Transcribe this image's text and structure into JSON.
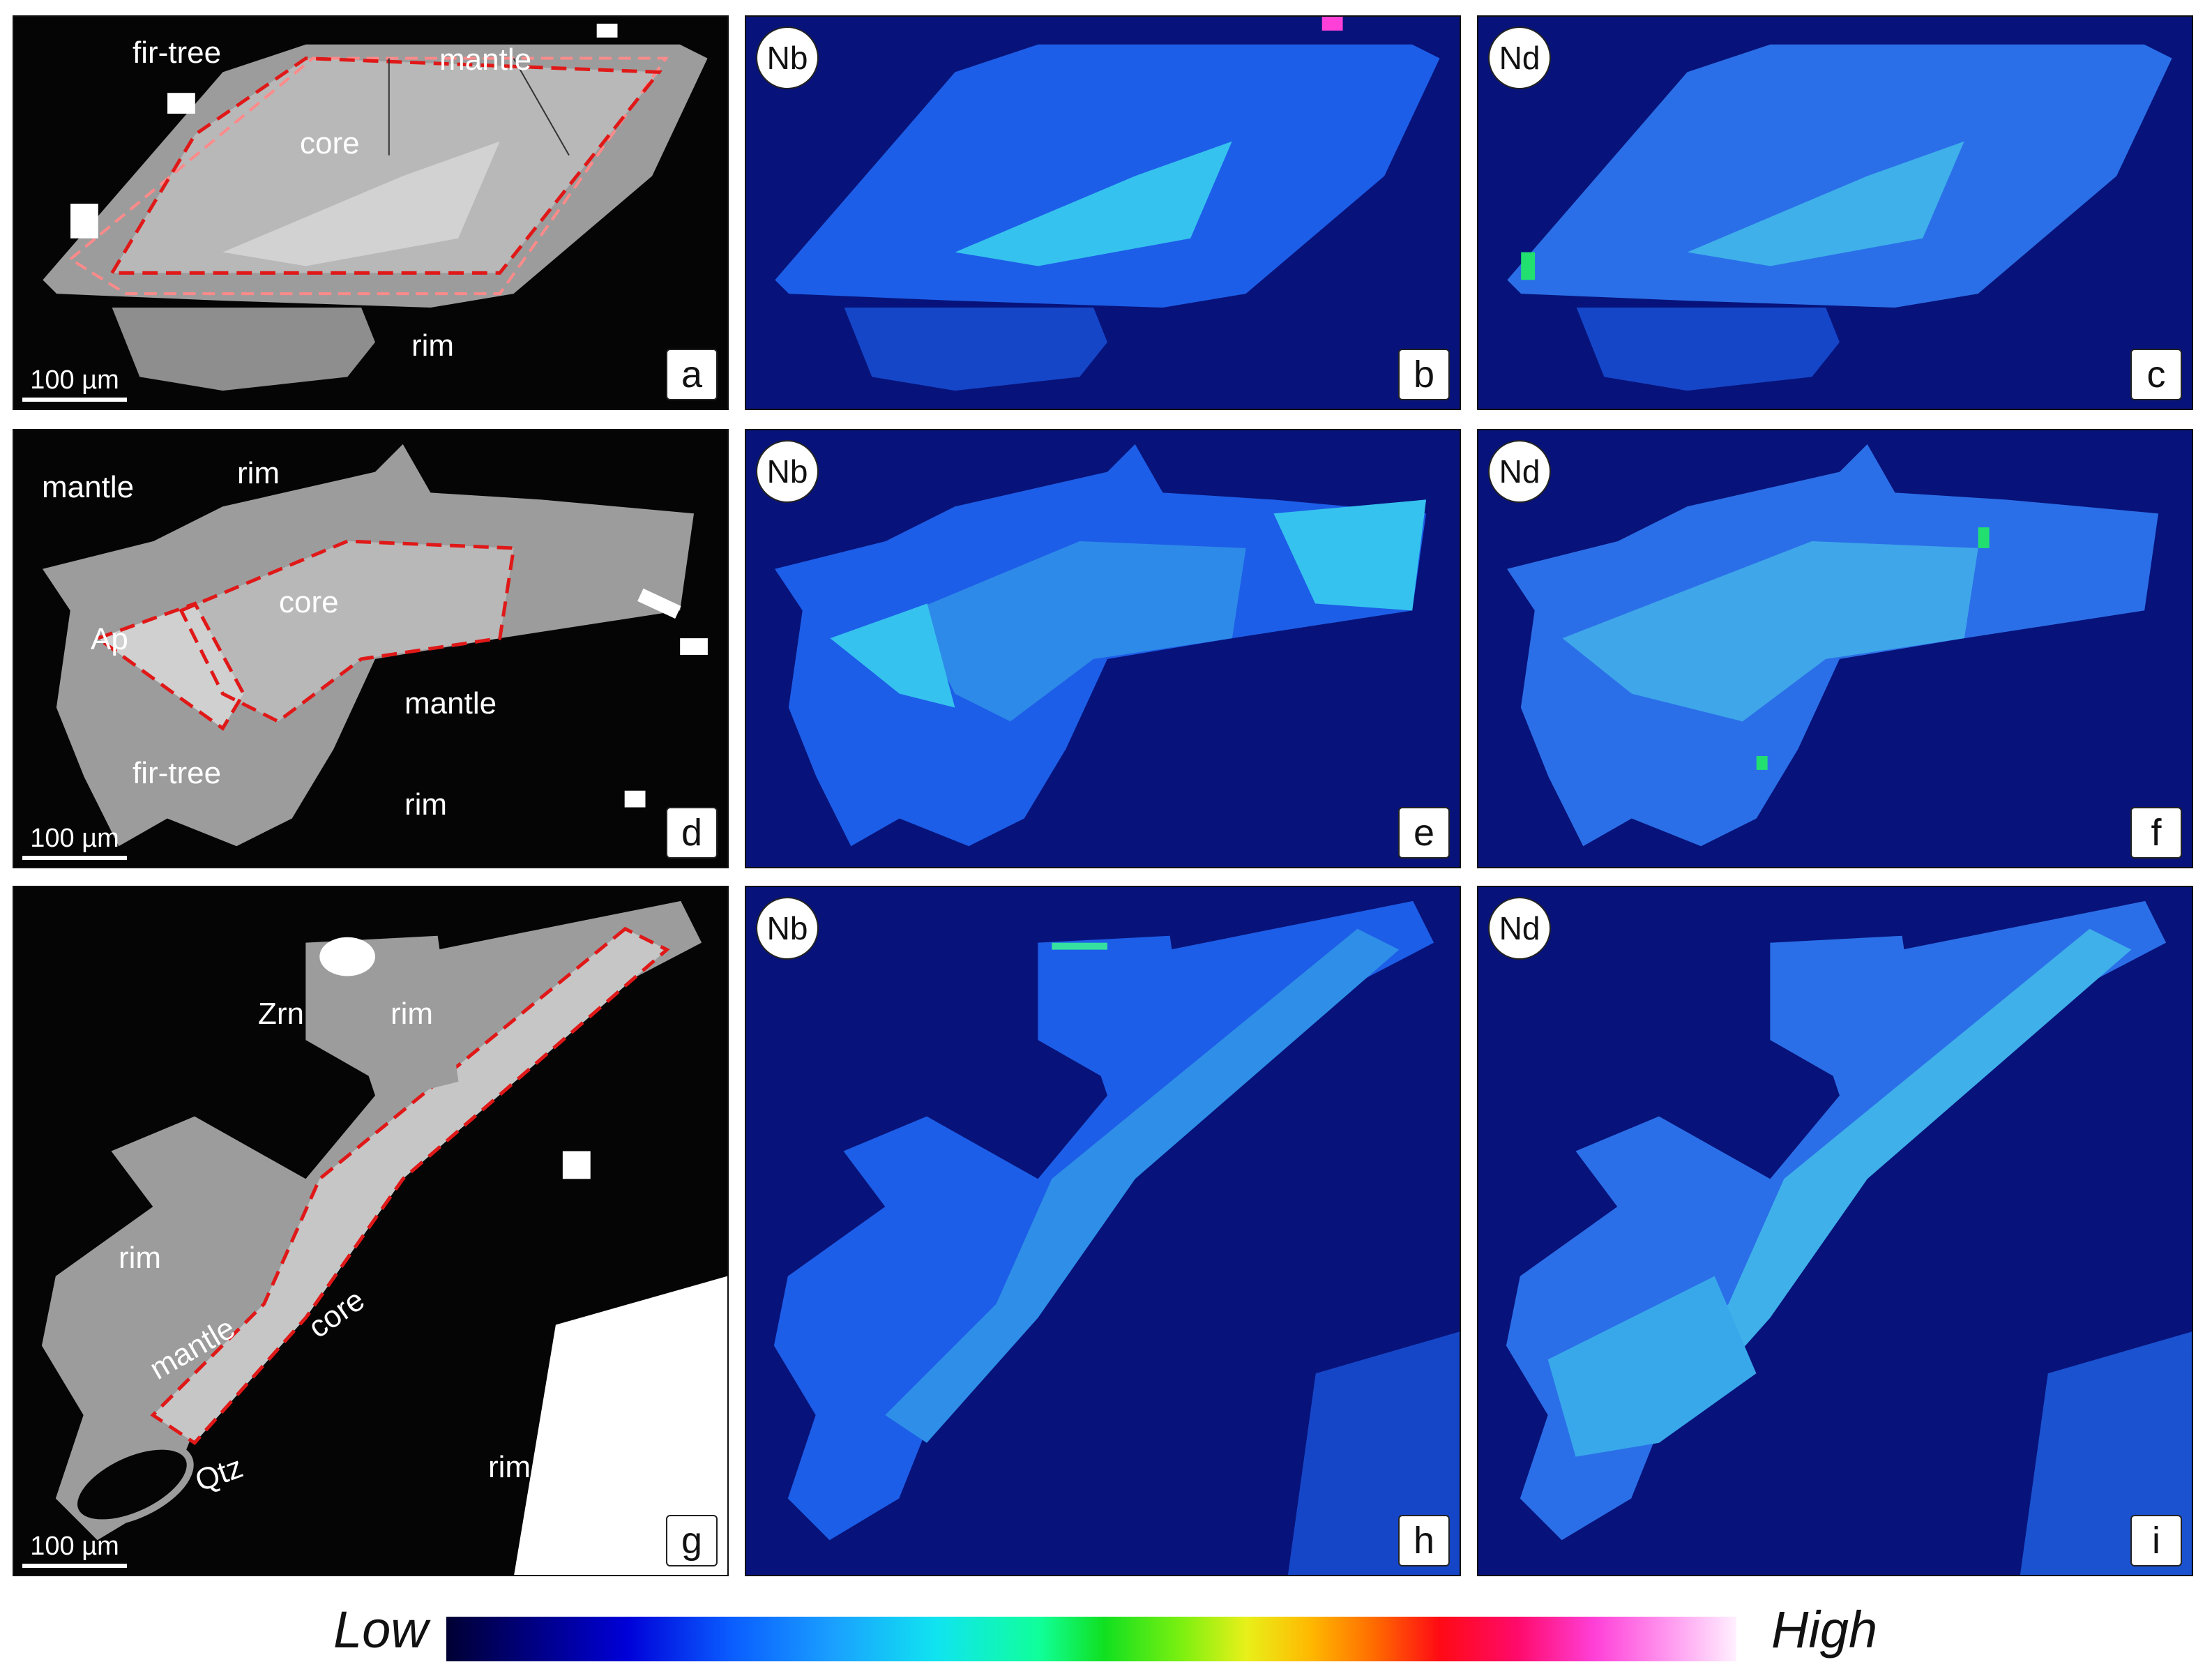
{
  "panels": [
    {
      "id": "a",
      "kind": "bse",
      "scale": "100 µm",
      "labels": {
        "fir_tree": "fir-tree",
        "mantle": "mantle",
        "core": "core",
        "rim": "rim"
      }
    },
    {
      "id": "b",
      "kind": "map",
      "element": "Nb"
    },
    {
      "id": "c",
      "kind": "map",
      "element": "Nd"
    },
    {
      "id": "d",
      "kind": "bse",
      "scale": "100 µm",
      "labels": {
        "mantle_top": "mantle",
        "rim_top": "rim",
        "core": "core",
        "ap": "Ap",
        "mantle_right": "mantle",
        "fir_tree": "fir-tree",
        "rim_bottom": "rim"
      }
    },
    {
      "id": "e",
      "kind": "map",
      "element": "Nb"
    },
    {
      "id": "f",
      "kind": "map",
      "element": "Nd"
    },
    {
      "id": "g",
      "kind": "bse",
      "scale": "100 µm",
      "labels": {
        "zrn": "Zrn",
        "rim_top": "rim",
        "rim_left": "rim",
        "mantle": "mantle",
        "core": "core",
        "qtz": "Qtz",
        "rim_right": "rim"
      }
    },
    {
      "id": "h",
      "kind": "map",
      "element": "Nb"
    },
    {
      "id": "i",
      "kind": "map",
      "element": "Nd"
    }
  ],
  "legend": {
    "low": "Low",
    "high": "High",
    "colormap": [
      "#000033",
      "#00007a",
      "#0000d8",
      "#0a5cff",
      "#1aa0ff",
      "#10e4f0",
      "#10ff9a",
      "#10e020",
      "#7cf010",
      "#e8f01a",
      "#ffb800",
      "#ff6a00",
      "#ff0a14",
      "#ff0a6a",
      "#ff40d8",
      "#ff9cf0",
      "#fff0ff"
    ]
  },
  "colors": {
    "zone_outline": "#e01818",
    "bse_mineral": "#9a9a9a",
    "bse_core": "#b8b8b8",
    "map_background": "#07137a",
    "map_mineral": "#1d5ee8",
    "map_high": "#36c2ee"
  }
}
